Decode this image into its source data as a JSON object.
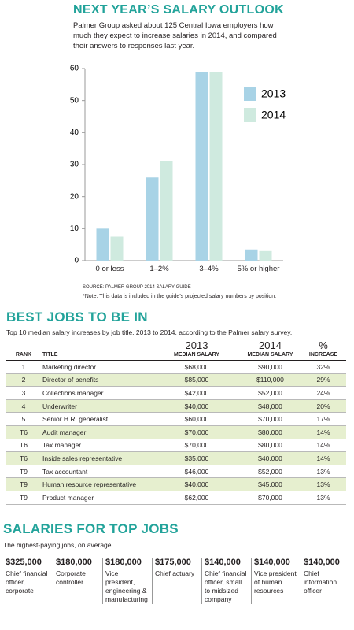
{
  "chart_data": {
    "type": "bar",
    "title": "NEXT YEAR’S SALARY OUTLOOK",
    "subtitle": "Palmer Group asked about 125 Central Iowa employers how much they expect to increase salaries in 2014, and compared their answers to responses last year.",
    "categories": [
      "0 or less",
      "1–2%",
      "3–4%",
      "5% or higher"
    ],
    "series": [
      {
        "name": "2013",
        "color": "#a8d3e6",
        "values": [
          10,
          26,
          59,
          3.5
        ]
      },
      {
        "name": "2014",
        "color": "#cfeadf",
        "values": [
          7.5,
          31,
          59,
          3
        ]
      }
    ],
    "ylim": [
      0,
      60
    ],
    "yticks": [
      0,
      10,
      20,
      30,
      40,
      50,
      60
    ],
    "source": "SOURCE: PALMER GROUP 2014 SALARY GUIDE",
    "note": "*Note: This data is included in the guide’s projected salary numbers by position."
  },
  "jobs": {
    "title": "BEST JOBS TO BE IN",
    "subtitle": "Top 10 median salary increases by job title, 2013 to 2014, according to the Palmer salary survey.",
    "header": [
      {
        "bottom": "RANK"
      },
      {
        "bottom": "TITLE"
      },
      {
        "top": "2013",
        "bottom": "MEDIAN SALARY"
      },
      {
        "top": "2014",
        "bottom": "MEDIAN SALARY"
      },
      {
        "top": "%",
        "bottom": "INCREASE"
      }
    ],
    "rows": [
      [
        "1",
        "Marketing director",
        "$68,000",
        "$90,000",
        "32%"
      ],
      [
        "2",
        "Director of benefits",
        "$85,000",
        "$110,000",
        "29%"
      ],
      [
        "3",
        "Collections manager",
        "$42,000",
        "$52,000",
        "24%"
      ],
      [
        "4",
        "Underwriter",
        "$40,000",
        "$48,000",
        "20%"
      ],
      [
        "5",
        "Senior H.R. generalist",
        "$60,000",
        "$70,000",
        "17%"
      ],
      [
        "T6",
        "Audit manager",
        "$70,000",
        "$80,000",
        "14%"
      ],
      [
        "T6",
        "Tax manager",
        "$70,000",
        "$80,000",
        "14%"
      ],
      [
        "T6",
        "Inside sales representative",
        "$35,000",
        "$40,000",
        "14%"
      ],
      [
        "T9",
        "Tax accountant",
        "$46,000",
        "$52,000",
        "13%"
      ],
      [
        "T9",
        "Human resource representative",
        "$40,000",
        "$45,000",
        "13%"
      ],
      [
        "T9",
        "Product manager",
        "$62,000",
        "$70,000",
        "13%"
      ]
    ]
  },
  "salaries": {
    "title": "SALARIES FOR TOP JOBS",
    "subtitle": "The highest-paying jobs, on average",
    "items": [
      {
        "amount": "$325,000",
        "title": "Chief financial officer, corporate"
      },
      {
        "amount": "$180,000",
        "title": "Corporate controller"
      },
      {
        "amount": "$180,000",
        "title": "Vice president, engineering & manufacturing"
      },
      {
        "amount": "$175,000",
        "title": "Chief actuary"
      },
      {
        "amount": "$140,000",
        "title": "Chief financial officer, small to midsized company"
      },
      {
        "amount": "$140,000",
        "title": "Vice president of human resources"
      },
      {
        "amount": "$140,000",
        "title": "Chief information officer"
      }
    ]
  }
}
